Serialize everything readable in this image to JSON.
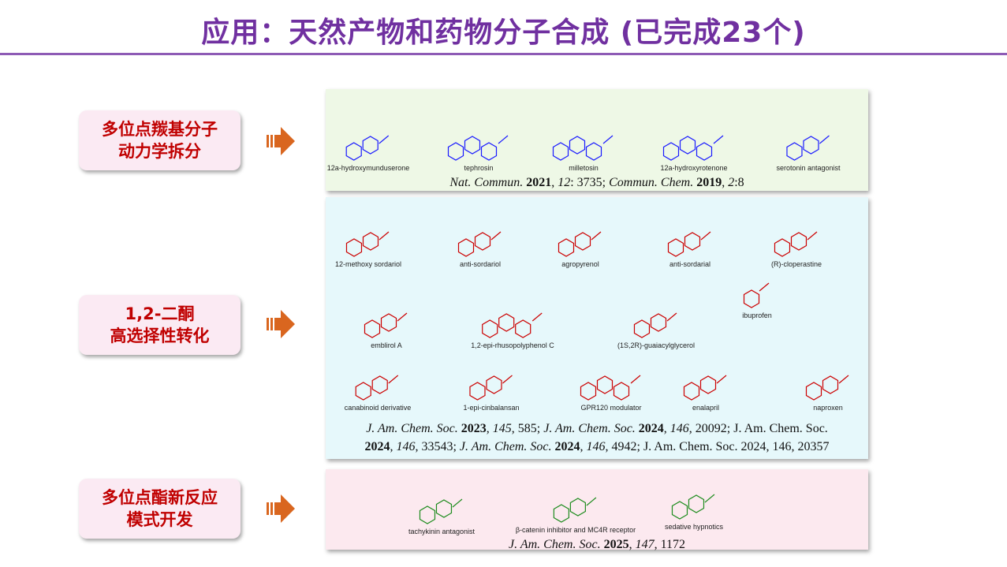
{
  "title": "应用：天然产物和药物分子合成 (已完成23个)",
  "colors": {
    "title": "#7030a0",
    "label_text": "#c00000",
    "arrow": "#d9661f",
    "panel1": "#eef8e6",
    "panel2": "#e6f8fb",
    "panel3": "#fce9ef",
    "struct1": "#1a1aff",
    "struct2": "#cc0000",
    "struct3": "#1e8c1e"
  },
  "sections": [
    {
      "label_lines": [
        "多位点羰基分子",
        "动力学拆分"
      ],
      "compounds": [
        "12a-hydroxymunduserone",
        "tephrosin",
        "milletosin",
        "12a-hydroxyrotenone",
        "serotonin antagonist"
      ],
      "reference_lines": [
        [
          "Nat. Commun.",
          "2021",
          ", ",
          "12",
          ": 3735; ",
          "Commun. Chem.",
          "2019",
          ", ",
          "2",
          ":8"
        ]
      ]
    },
    {
      "label_lines": [
        "1,2-二酮",
        "高选择性转化"
      ],
      "compounds": [
        "12-methoxy sordariol",
        "anti-sordariol",
        "agropyrenol",
        "anti-sordarial",
        "(R)-cloperastine",
        "emblirol A",
        "1,2-epi-rhusopolyphenol C",
        "(1S,2R)-guaiacylglycerol",
        "ibuprofen",
        "canabinoid derivative",
        "1-epi-cinbalansan",
        "GPR120 modulator",
        "enalapril",
        "naproxen"
      ],
      "reference_lines": [
        [
          "J. Am. Chem. Soc.",
          "2023",
          ", ",
          "145",
          ", 585; ",
          "J. Am. Chem. Soc.",
          "2024",
          ", ",
          "146",
          ", 20092; J. Am. Chem. Soc."
        ],
        [
          "",
          "2024",
          ", ",
          "146",
          ", 33543; ",
          "J. Am. Chem. Soc.",
          "2024",
          ", ",
          "146",
          ", 4942; J. Am. Chem. Soc. 2024, 146, 20357"
        ]
      ]
    },
    {
      "label_lines": [
        "多位点酯新反应",
        "模式开发"
      ],
      "compounds": [
        "tachykinin antagonist",
        "β-catenin inhibitor and MC4R receptor",
        "sedative hypnotics"
      ],
      "reference_lines": [
        [
          "J. Am. Chem. Soc.",
          "2025",
          ", ",
          "147",
          ", 1172"
        ]
      ]
    }
  ]
}
